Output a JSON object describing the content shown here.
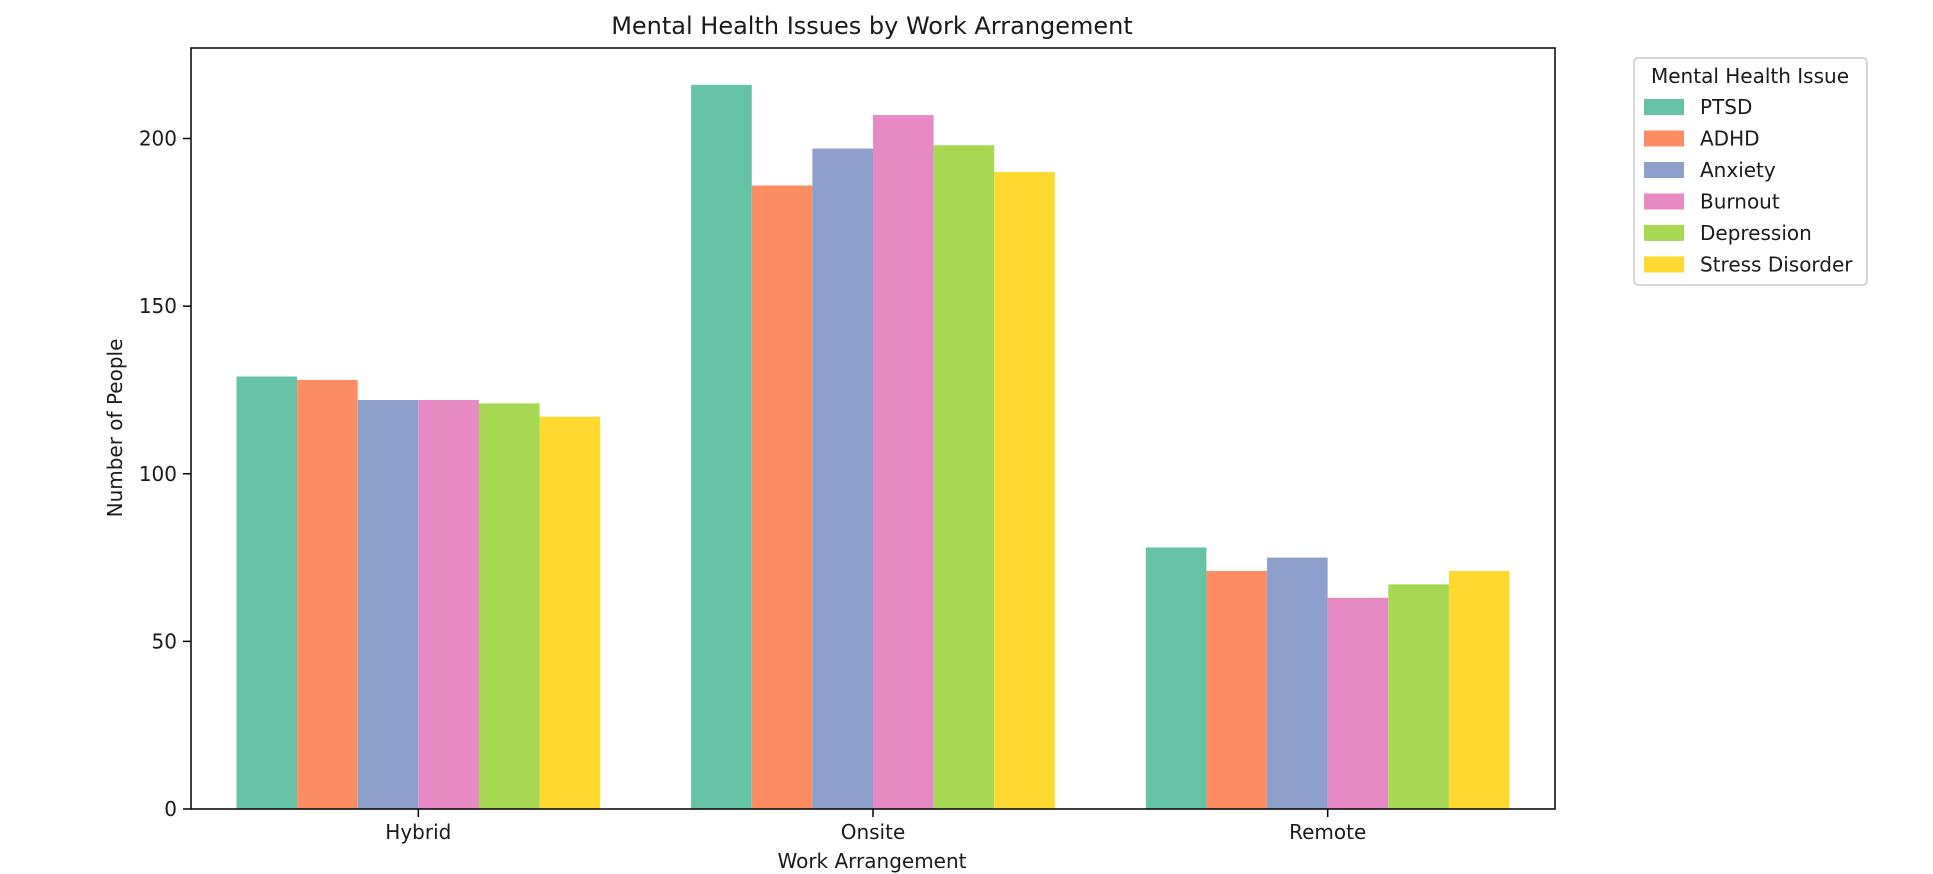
{
  "chart_data": {
    "type": "bar",
    "title": "Mental Health Issues by Work Arrangement",
    "xlabel": "Work Arrangement",
    "ylabel": "Number of People",
    "categories": [
      "Hybrid",
      "Onsite",
      "Remote"
    ],
    "ylim": [
      0,
      227
    ],
    "yticks": [
      0,
      50,
      100,
      150,
      200
    ],
    "grid": false,
    "legend": {
      "title": "Mental Health Issue",
      "position": "outside-top-right"
    },
    "series": [
      {
        "name": "PTSD",
        "color": "#66c2a5",
        "values": [
          129,
          216,
          78
        ]
      },
      {
        "name": "ADHD",
        "color": "#fc8d62",
        "values": [
          128,
          186,
          71
        ]
      },
      {
        "name": "Anxiety",
        "color": "#8da0cb",
        "values": [
          122,
          197,
          75
        ]
      },
      {
        "name": "Burnout",
        "color": "#e78ac3",
        "values": [
          122,
          207,
          63
        ]
      },
      {
        "name": "Depression",
        "color": "#a6d854",
        "values": [
          121,
          198,
          67
        ]
      },
      {
        "name": "Stress Disorder",
        "color": "#ffd92f",
        "values": [
          117,
          190,
          71
        ]
      }
    ]
  }
}
